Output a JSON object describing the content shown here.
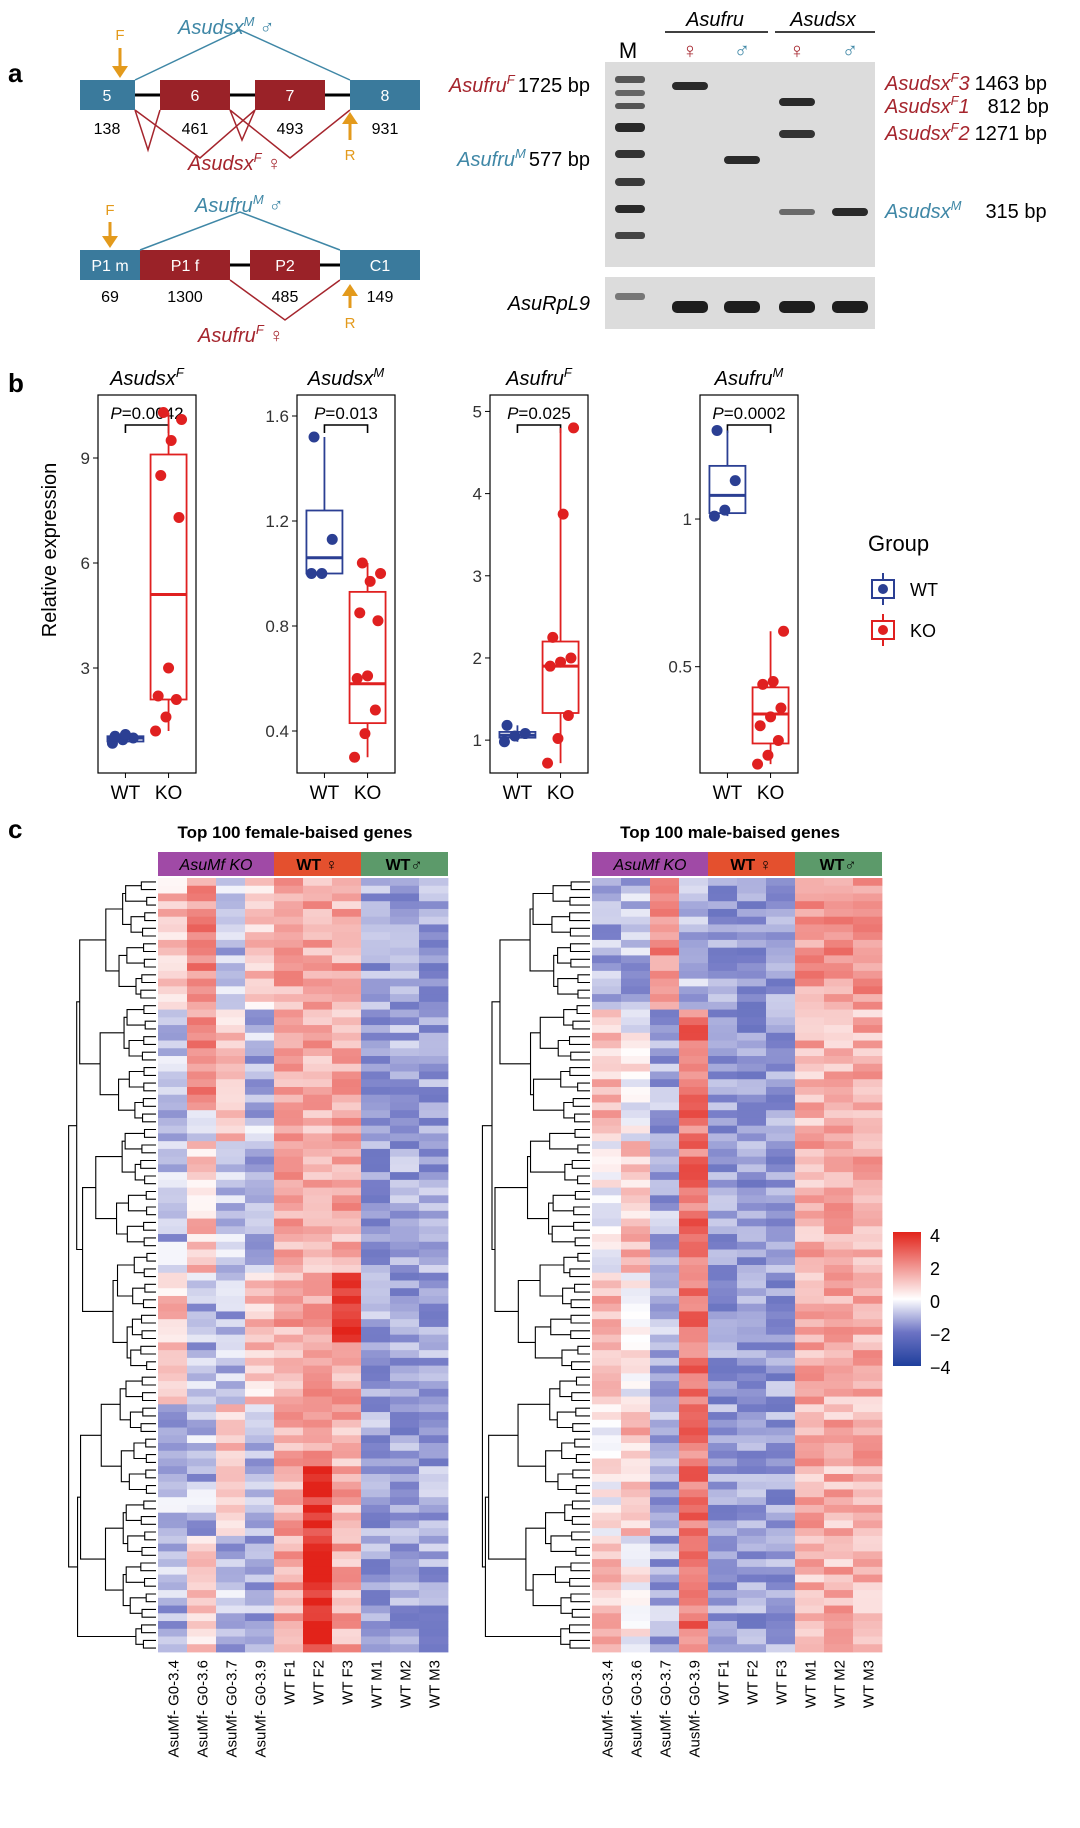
{
  "colors": {
    "exon_blue": "#3a7a9c",
    "exon_red": "#9a2228",
    "female_red": "#a5252d",
    "male_blue": "#3f87a6",
    "primer": "#e39a1c",
    "wt": "#2b3f93",
    "ko": "#e02020",
    "ko_bar": "#a04aa6",
    "wtf_bar": "#e4502e",
    "wtm_bar": "#5c9a6a"
  },
  "panel_a": {
    "letter": "a",
    "dsx": {
      "male_label": "Asudsx",
      "male_sup": "M",
      "male_sym": "♂",
      "female_label": "Asudsx",
      "female_sup": "F",
      "female_sym": "♀",
      "exons": [
        "5",
        "6",
        "7",
        "8"
      ],
      "lengths": [
        "138",
        "461",
        "493",
        "931"
      ],
      "primer_f": "F",
      "primer_r": "R"
    },
    "fru": {
      "male_label": "Asufru",
      "male_sup": "M",
      "male_sym": "♂",
      "female_label": "Asufru",
      "female_sup": "F",
      "female_sym": "♀",
      "exons": [
        "P1 m",
        "P1 f",
        "P2",
        "C1"
      ],
      "lengths": [
        "69",
        "1300",
        "485",
        "149"
      ],
      "primer_f": "F",
      "primer_r": "R"
    },
    "gel": {
      "marker": "M",
      "group1": "Asufru",
      "group2": "Asudsx",
      "lane_syms": [
        "♀",
        "♂",
        "♀",
        "♂"
      ],
      "left_labels": [
        {
          "name": "Asufru",
          "sup": "F",
          "size": "1725 bp"
        },
        {
          "name": "Asufru",
          "sup": "M",
          "size": "577 bp"
        }
      ],
      "right_labels": [
        {
          "name": "Asudsx",
          "sup": "F",
          "sub": "3",
          "size": "1463 bp"
        },
        {
          "name": "Asudsx",
          "sup": "F",
          "sub": "1",
          "size": "812 bp"
        },
        {
          "name": "Asudsx",
          "sup": "F",
          "sub": "2",
          "size": "1271 bp"
        },
        {
          "name": "Asudsx",
          "sup": "M",
          "sub": "",
          "size": "315 bp"
        }
      ],
      "loading_label": "AsuRpL9"
    }
  },
  "panel_b": {
    "letter": "b",
    "ylabel": "Relative expression",
    "legend_title": "Group",
    "legend_items": [
      "WT",
      "KO"
    ]
  },
  "panel_c": {
    "letter": "c",
    "title_left": "Top 100 female-baised genes",
    "title_right": "Top 100 male-baised genes",
    "group_ko": "AsuMf KO",
    "group_wtf": "WT ♀",
    "group_wtm": "WT♂",
    "samples_left": [
      "AsuMf- G0-3.4",
      "AsuMf- G0-3.6",
      "AsuMf- G0-3.7",
      "AsuMf- G0-3.9",
      "WT F1",
      "WT F2",
      "WT F3",
      "WT M1",
      "WT M2",
      "WT M3"
    ],
    "samples_right": [
      "AsuMf- G0-3.4",
      "AsuMf- G0-3.6",
      "AsuMf- G0-3.7",
      "AusMf- G0-3.9",
      "WT F1",
      "WT F2",
      "WT F3",
      "WT M1",
      "WT M2",
      "WT M3"
    ],
    "colorbar_ticks": [
      "4",
      "2",
      "0",
      "−2",
      "−4"
    ]
  },
  "chart_data": [
    {
      "type": "box",
      "title": "Asudsx",
      "title_sup": "F",
      "pvalue": "P=0.0042",
      "categories": [
        "WT",
        "KO"
      ],
      "yticks": [
        3,
        6,
        9
      ],
      "ylim": [
        0,
        10.8
      ],
      "series": [
        {
          "name": "WT",
          "values": [
            0.85,
            0.95,
            1.0,
            1.05,
            1.1
          ],
          "box": [
            0.9,
            1.0,
            1.05
          ]
        },
        {
          "name": "KO",
          "values": [
            1.2,
            1.6,
            2.1,
            2.2,
            3.0,
            7.3,
            8.5,
            9.5,
            10.1,
            10.3
          ],
          "box": [
            2.1,
            5.1,
            9.1
          ]
        }
      ]
    },
    {
      "type": "box",
      "title": "Asudsx",
      "title_sup": "M",
      "pvalue": "P=0.013",
      "categories": [
        "WT",
        "KO"
      ],
      "yticks": [
        0.4,
        0.8,
        1.2,
        1.6
      ],
      "ylim": [
        0.24,
        1.68
      ],
      "series": [
        {
          "name": "WT",
          "values": [
            1.0,
            1.0,
            1.13,
            1.52
          ],
          "box": [
            1.0,
            1.06,
            1.24
          ]
        },
        {
          "name": "KO",
          "values": [
            0.3,
            0.39,
            0.48,
            0.6,
            0.61,
            0.82,
            0.85,
            0.97,
            1.0,
            1.04
          ],
          "box": [
            0.43,
            0.58,
            0.93
          ]
        }
      ]
    },
    {
      "type": "box",
      "title": "Asufru",
      "title_sup": "F",
      "pvalue": "P=0.025",
      "categories": [
        "WT",
        "KO"
      ],
      "yticks": [
        1,
        2,
        3,
        4,
        5
      ],
      "ylim": [
        0.6,
        5.2
      ],
      "series": [
        {
          "name": "WT",
          "values": [
            0.98,
            1.05,
            1.08,
            1.18
          ],
          "box": [
            1.03,
            1.06,
            1.1
          ]
        },
        {
          "name": "KO",
          "values": [
            0.72,
            1.02,
            1.3,
            1.9,
            1.95,
            2.0,
            2.25,
            3.75,
            4.8
          ],
          "box": [
            1.33,
            1.9,
            2.2
          ]
        }
      ]
    },
    {
      "type": "box",
      "title": "Asufru",
      "title_sup": "M",
      "pvalue": "P=0.0002",
      "categories": [
        "WT",
        "KO"
      ],
      "yticks": [
        0.5,
        1.0
      ],
      "ylim": [
        0.14,
        1.42
      ],
      "series": [
        {
          "name": "WT",
          "values": [
            1.01,
            1.03,
            1.13,
            1.3
          ],
          "box": [
            1.02,
            1.08,
            1.18
          ]
        },
        {
          "name": "KO",
          "values": [
            0.17,
            0.2,
            0.25,
            0.3,
            0.33,
            0.36,
            0.44,
            0.45,
            0.62
          ],
          "box": [
            0.24,
            0.34,
            0.43
          ]
        }
      ]
    },
    {
      "type": "heatmap",
      "title": "Top 100 female-baised genes",
      "rows": 100,
      "columns": [
        "AsuMf- G0-3.4",
        "AsuMf- G0-3.6",
        "AsuMf- G0-3.7",
        "AsuMf- G0-3.9",
        "WT F1",
        "WT F2",
        "WT F3",
        "WT M1",
        "WT M2",
        "WT M3"
      ],
      "range": [
        -4,
        4
      ]
    },
    {
      "type": "heatmap",
      "title": "Top 100 male-baised genes",
      "rows": 100,
      "columns": [
        "AsuMf- G0-3.4",
        "AsuMf- G0-3.6",
        "AsuMf- G0-3.7",
        "AusMf- G0-3.9",
        "WT F1",
        "WT F2",
        "WT F3",
        "WT M1",
        "WT M2",
        "WT M3"
      ],
      "range": [
        -4,
        4
      ]
    }
  ]
}
